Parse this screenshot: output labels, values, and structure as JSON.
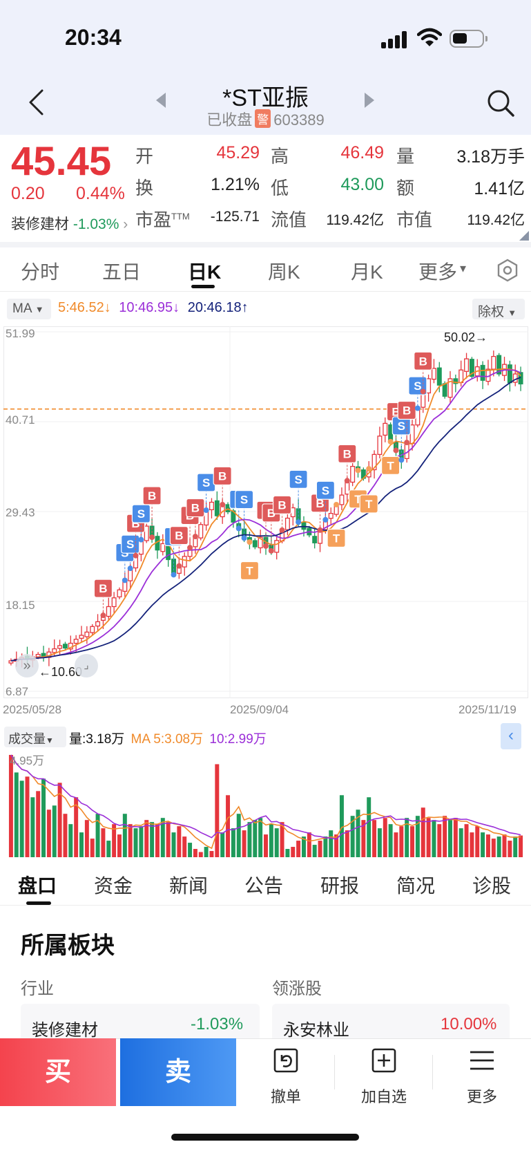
{
  "status": {
    "time": "20:34"
  },
  "header": {
    "title": "*ST亚振",
    "status_text": "已收盘",
    "warn_badge": "警",
    "code": "603389"
  },
  "quote": {
    "price": "45.45",
    "change": "0.20",
    "change_pct": "0.44%",
    "sector_name": "装修建材",
    "sector_change": "-1.03%",
    "rows": [
      [
        {
          "label": "开",
          "value": "45.29",
          "color": "red"
        },
        {
          "label": "高",
          "value": "46.49",
          "color": "red"
        },
        {
          "label": "量",
          "value": "3.18万手",
          "color": ""
        }
      ],
      [
        {
          "label": "换",
          "value": "1.21%",
          "color": ""
        },
        {
          "label": "低",
          "value": "43.00",
          "color": "green"
        },
        {
          "label": "额",
          "value": "1.41亿",
          "color": ""
        }
      ],
      [
        {
          "label": "市盈",
          "sup": "TTM",
          "value": "-125.71",
          "color": ""
        },
        {
          "label": "流值",
          "value": "119.42亿",
          "color": ""
        },
        {
          "label": "市值",
          "value": "119.42亿",
          "color": ""
        }
      ]
    ]
  },
  "period_tabs": [
    "分时",
    "五日",
    "日K",
    "周K",
    "月K",
    "更多"
  ],
  "period_active": 2,
  "ma_panel": {
    "chip": "MA",
    "ma5": "5:46.52",
    "ma10": "10:46.95",
    "ma20": "20:46.18",
    "adjust_chip": "除权"
  },
  "chart_data": {
    "type": "candlestick",
    "y_ticks": [
      "51.99",
      "40.71",
      "29.43",
      "18.15",
      "6.87"
    ],
    "ylim": [
      6.87,
      51.99
    ],
    "x_ticks": [
      "2025/05/28",
      "2025/09/04",
      "2025/11/19"
    ],
    "high_annotation": "50.02",
    "low_annotation": "10.60",
    "ref_price": 42.3,
    "series_colors": {
      "up": "#e5353c",
      "down": "#1f9a5b",
      "ma5": "#f08a2a",
      "ma10": "#9b2fd8",
      "ma20": "#14227a"
    },
    "closes": [
      10.7,
      10.9,
      11.1,
      10.9,
      11.2,
      11.5,
      11.3,
      11.8,
      12.2,
      12.6,
      12.3,
      12.9,
      13.4,
      13.9,
      14.3,
      15.0,
      15.6,
      16.4,
      17.5,
      18.6,
      19.6,
      20.8,
      22.3,
      23.9,
      25.9,
      27.6,
      26.2,
      24.6,
      25.4,
      23.4,
      21.5,
      22.6,
      23.8,
      24.9,
      26.3,
      27.8,
      29.6,
      30.6,
      28.9,
      30.3,
      29.4,
      28.1,
      27.3,
      26.1,
      25.6,
      25.0,
      26.2,
      25.1,
      24.5,
      25.8,
      27.1,
      28.6,
      29.9,
      28.1,
      27.2,
      26.5,
      25.5,
      27.1,
      28.4,
      29.2,
      30.3,
      31.5,
      33.3,
      35.1,
      34.6,
      33.6,
      34.8,
      36.6,
      38.9,
      40.5,
      38.2,
      37.1,
      35.9,
      38.1,
      40.3,
      42.4,
      44.5,
      46.1,
      47.4,
      45.3,
      43.9,
      46.1,
      45.5,
      47.2,
      48.6,
      46.4,
      47.6,
      45.9,
      47.3,
      48.9,
      46.7,
      47.9,
      45.6,
      46.7,
      45.45
    ],
    "volume": {
      "label": "成交量",
      "current": "量:3.18万",
      "ma5": "MA 5:3.08万",
      "ma10": "10:2.99万",
      "max_label": "4.95万",
      "values": [
        4.95,
        4.1,
        3.7,
        3.9,
        2.9,
        3.2,
        3.8,
        2.3,
        2.5,
        3.6,
        2.1,
        1.6,
        2.9,
        1.2,
        1.8,
        0.9,
        2.1,
        1.4,
        0.8,
        1.6,
        1.1,
        2.1,
        1.6,
        1.4,
        1.5,
        1.8,
        1.7,
        1.6,
        1.9,
        1.7,
        1.2,
        1.5,
        1.0,
        0.7,
        0.4,
        0.25,
        0.5,
        0.3,
        4.5,
        1.2,
        3.0,
        1.4,
        2.1,
        1.3,
        1.7,
        1.8,
        1.9,
        1.1,
        1.6,
        1.4,
        1.7,
        0.4,
        0.5,
        0.8,
        1.0,
        1.2,
        0.6,
        0.8,
        1.0,
        1.3,
        1.1,
        3.0,
        1.3,
        2.0,
        2.3,
        1.8,
        2.9,
        1.8,
        1.4,
        1.9,
        1.6,
        1.2,
        1.5,
        1.9,
        1.5,
        2.0,
        2.4,
        1.9,
        1.8,
        1.6,
        2.0,
        1.8,
        1.9,
        1.4,
        1.6,
        1.2,
        1.5,
        1.2,
        1.1,
        0.9,
        1.0,
        1.1,
        0.8,
        1.0,
        1.05
      ],
      "up_flags": [
        1,
        0,
        0,
        1,
        0,
        1,
        0,
        1,
        0,
        1,
        1,
        0,
        1,
        0,
        1,
        1,
        0,
        1,
        0,
        1,
        1,
        0,
        1,
        0,
        0,
        1,
        0,
        1,
        0,
        1,
        0,
        1,
        1,
        0,
        1,
        1,
        0,
        1,
        1,
        0,
        1,
        0,
        0,
        1,
        0,
        0,
        0,
        1,
        0,
        0,
        1,
        0,
        1,
        1,
        0,
        1,
        0,
        1,
        0,
        0,
        1,
        0,
        1,
        0,
        0,
        1,
        0,
        1,
        0,
        1,
        0,
        1,
        1,
        0,
        1,
        0,
        1,
        1,
        0,
        1,
        1,
        0,
        1,
        0,
        1,
        1,
        1,
        0,
        1,
        1,
        0,
        1,
        1,
        0,
        1
      ]
    }
  },
  "trade_markers": [
    {
      "i": 17,
      "t": "B"
    },
    {
      "i": 21,
      "t": "S"
    },
    {
      "i": 22,
      "t": "S"
    },
    {
      "i": 23,
      "t": "B"
    },
    {
      "i": 24,
      "t": "S"
    },
    {
      "i": 26,
      "t": "B"
    },
    {
      "i": 30,
      "t": "S"
    },
    {
      "i": 31,
      "t": "B"
    },
    {
      "i": 33,
      "t": "B"
    },
    {
      "i": 34,
      "t": "B"
    },
    {
      "i": 36,
      "t": "S"
    },
    {
      "i": 39,
      "t": "B"
    },
    {
      "i": 42,
      "t": "S"
    },
    {
      "i": 43,
      "t": "S"
    },
    {
      "i": 44,
      "t": "T"
    },
    {
      "i": 47,
      "t": "B"
    },
    {
      "i": 48,
      "t": "B"
    },
    {
      "i": 50,
      "t": "B"
    },
    {
      "i": 53,
      "t": "S"
    },
    {
      "i": 57,
      "t": "B"
    },
    {
      "i": 58,
      "t": "S"
    },
    {
      "i": 60,
      "t": "T"
    },
    {
      "i": 62,
      "t": "B"
    },
    {
      "i": 64,
      "t": "T"
    },
    {
      "i": 66,
      "t": "T"
    },
    {
      "i": 70,
      "t": "T"
    },
    {
      "i": 71,
      "t": "B"
    },
    {
      "i": 72,
      "t": "S"
    },
    {
      "i": 73,
      "t": "B"
    },
    {
      "i": 75,
      "t": "S"
    },
    {
      "i": 76,
      "t": "B"
    }
  ],
  "info_tabs": [
    "盘口",
    "资金",
    "新闻",
    "公告",
    "研报",
    "简况",
    "诊股"
  ],
  "info_active": 0,
  "section": {
    "title": "所属板块",
    "left_label": "行业",
    "right_label": "领涨股",
    "left_name": "装修建材",
    "left_value": "-1.03%",
    "right_name": "永安林业",
    "right_value": "10.00%"
  },
  "bottom": {
    "buy": "买",
    "sell": "卖",
    "cancel": "撤单",
    "add_watch": "加自选",
    "more": "更多"
  }
}
